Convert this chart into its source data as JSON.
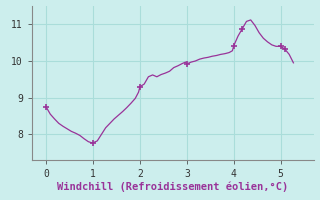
{
  "title": "",
  "xlabel": "Windchill (Refroidissement éolien,°C)",
  "ylabel": "",
  "bg_color": "#cceeed",
  "grid_color": "#aaddda",
  "line_color": "#993399",
  "marker_color": "#993399",
  "spine_color": "#888888",
  "xlim": [
    -0.3,
    5.7
  ],
  "ylim": [
    7.3,
    11.5
  ],
  "xticks": [
    0,
    1,
    2,
    3,
    4,
    5
  ],
  "yticks": [
    8,
    9,
    10,
    11
  ],
  "x": [
    0.0,
    0.09,
    0.18,
    0.27,
    0.36,
    0.45,
    0.54,
    0.63,
    0.72,
    0.81,
    0.9,
    0.97,
    1.0,
    1.09,
    1.18,
    1.27,
    1.36,
    1.45,
    1.54,
    1.63,
    1.72,
    1.81,
    1.9,
    1.97,
    2.0,
    2.09,
    2.18,
    2.27,
    2.36,
    2.45,
    2.54,
    2.63,
    2.72,
    2.81,
    2.9,
    2.97,
    3.0,
    3.09,
    3.18,
    3.27,
    3.36,
    3.45,
    3.54,
    3.63,
    3.72,
    3.81,
    3.9,
    3.97,
    4.0,
    4.09,
    4.18,
    4.27,
    4.36,
    4.45,
    4.54,
    4.63,
    4.72,
    4.81,
    4.9,
    4.97,
    5.0,
    5.09,
    5.18,
    5.27
  ],
  "y": [
    8.75,
    8.55,
    8.42,
    8.3,
    8.22,
    8.15,
    8.08,
    8.03,
    7.97,
    7.88,
    7.8,
    7.77,
    7.77,
    7.82,
    8.0,
    8.18,
    8.3,
    8.42,
    8.52,
    8.62,
    8.73,
    8.85,
    8.98,
    9.15,
    9.3,
    9.37,
    9.57,
    9.62,
    9.57,
    9.63,
    9.67,
    9.72,
    9.82,
    9.87,
    9.93,
    9.97,
    9.92,
    9.97,
    10.0,
    10.05,
    10.08,
    10.1,
    10.13,
    10.15,
    10.18,
    10.2,
    10.23,
    10.28,
    10.42,
    10.68,
    10.88,
    11.08,
    11.12,
    10.97,
    10.77,
    10.62,
    10.52,
    10.44,
    10.4,
    10.4,
    10.4,
    10.32,
    10.18,
    9.95
  ],
  "marker_x": [
    0.0,
    1.0,
    2.0,
    3.0,
    4.0,
    4.18,
    5.0,
    5.09
  ],
  "marker_y": [
    8.75,
    7.77,
    9.3,
    9.92,
    10.42,
    10.88,
    10.4,
    10.32
  ],
  "tick_fontsize": 7,
  "xlabel_fontsize": 7.5
}
